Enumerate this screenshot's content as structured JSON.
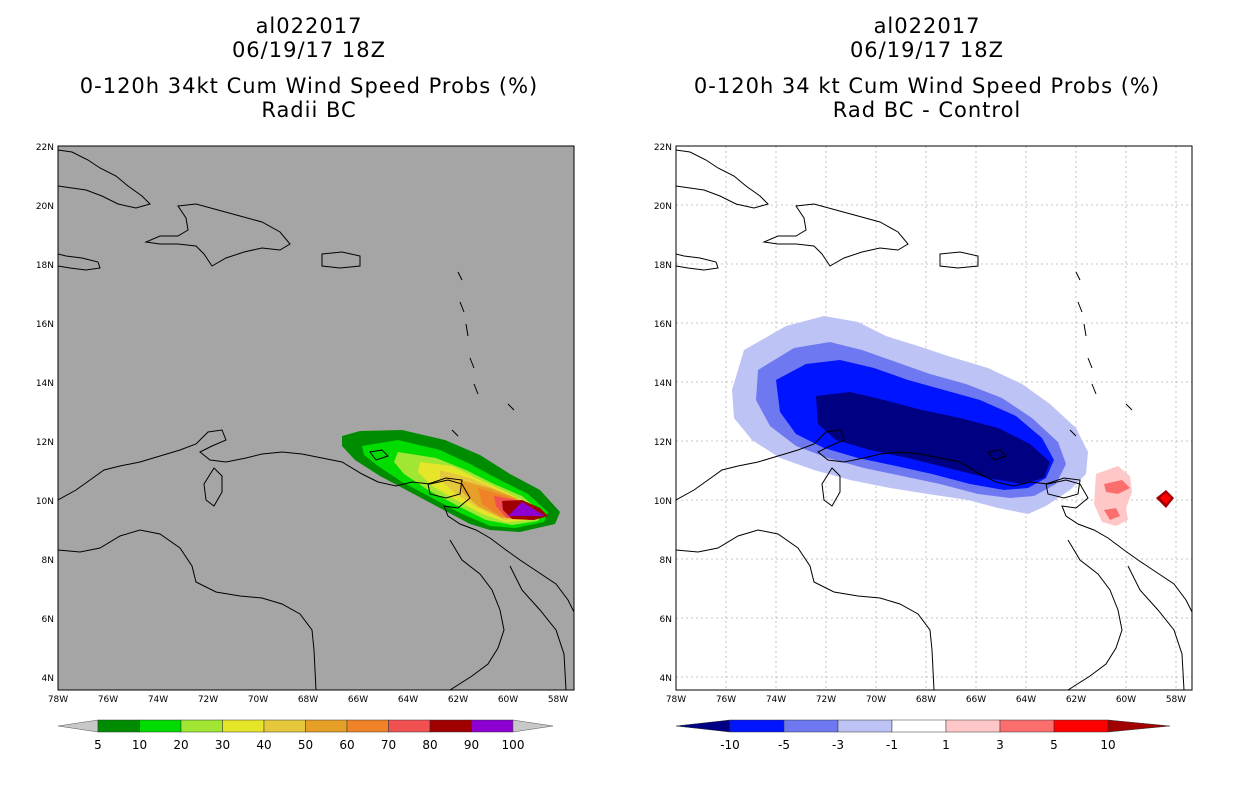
{
  "left": {
    "title_id": "al022017",
    "title_time": "06/19/17 18Z",
    "title_product": "0-120h 34kt Cum Wind Speed Probs (%)",
    "title_subtitle": "Radii BC",
    "colorbar_labels": [
      "5",
      "10",
      "20",
      "30",
      "40",
      "50",
      "60",
      "70",
      "80",
      "90",
      "100"
    ],
    "colors": [
      "#008c00",
      "#00dc00",
      "#a0e632",
      "#e6e628",
      "#e6c83c",
      "#e6a028",
      "#f08228",
      "#f05050",
      "#a00000",
      "#8c00d2"
    ]
  },
  "right": {
    "title_id": "al022017",
    "title_time": "06/19/17 18Z",
    "title_product": "0-120h 34 kt Cum Wind Speed Probs (%)",
    "title_subtitle": "Rad BC - Control",
    "colorbar_labels": [
      "-10",
      "-5",
      "-3",
      "-1",
      "1",
      "3",
      "5",
      "10"
    ],
    "colors": [
      "#000082",
      "#0014ff",
      "#6e78f0",
      "#bec3f5",
      "#ffffff",
      "#ffc8c8",
      "#fa6e6e",
      "#ff0000",
      "#a00000"
    ]
  },
  "axes": {
    "lat_labels": [
      "22N",
      "20N",
      "18N",
      "16N",
      "14N",
      "12N",
      "10N",
      "8N",
      "6N",
      "4N"
    ],
    "lon_labels": [
      "78W",
      "76W",
      "74W",
      "72W",
      "70W",
      "68W",
      "66W",
      "64W",
      "62W",
      "60W",
      "58W"
    ]
  },
  "map_extent": {
    "lon_min": -78,
    "lon_max": -57.5,
    "lat_min": 3.6,
    "lat_max": 22
  }
}
